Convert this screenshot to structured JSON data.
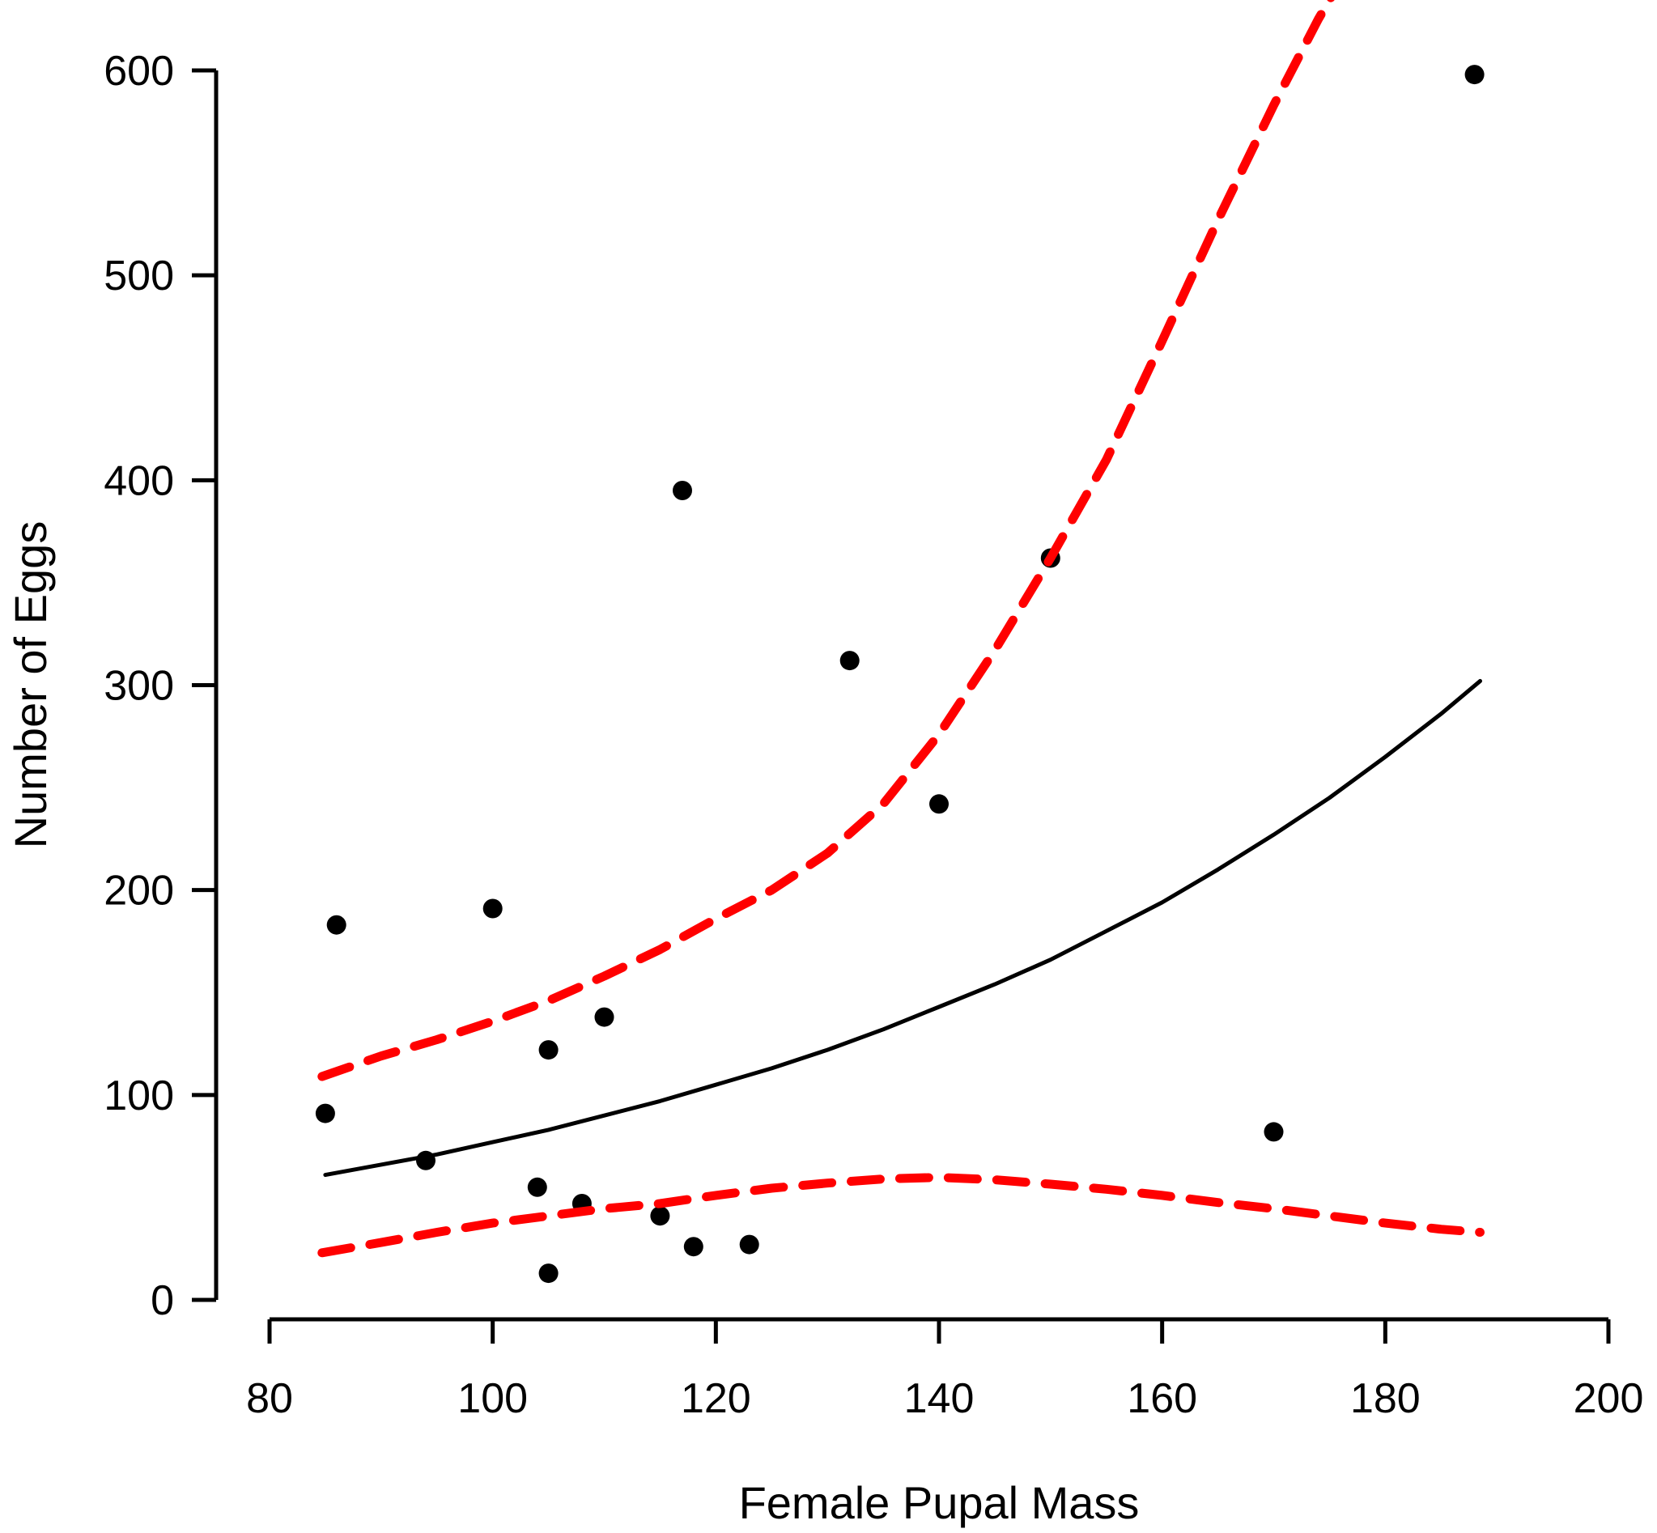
{
  "chart_data": {
    "type": "scatter",
    "title": "",
    "xlabel": "Female Pupal Mass",
    "ylabel": "Number of Eggs",
    "xlim": [
      80,
      200
    ],
    "ylim": [
      0,
      600
    ],
    "xticks": [
      80,
      100,
      120,
      140,
      160,
      180,
      200
    ],
    "yticks": [
      0,
      100,
      200,
      300,
      400,
      500,
      600
    ],
    "grid": false,
    "legend": "none",
    "points": [
      [
        85,
        91
      ],
      [
        86,
        183
      ],
      [
        94,
        68
      ],
      [
        100,
        191
      ],
      [
        104,
        55
      ],
      [
        105,
        13
      ],
      [
        105,
        122
      ],
      [
        108,
        47
      ],
      [
        110,
        138
      ],
      [
        115,
        41
      ],
      [
        117,
        395
      ],
      [
        118,
        26
      ],
      [
        123,
        27
      ],
      [
        132,
        312
      ],
      [
        140,
        242
      ],
      [
        150,
        362
      ],
      [
        170,
        82
      ],
      [
        188,
        598
      ]
    ],
    "series": [
      {
        "name": "fitted-curve",
        "style": "solid",
        "color": "#000000",
        "xy": [
          [
            85,
            61
          ],
          [
            90,
            66
          ],
          [
            95,
            71
          ],
          [
            100,
            77
          ],
          [
            105,
            83
          ],
          [
            110,
            90
          ],
          [
            115,
            97
          ],
          [
            120,
            105
          ],
          [
            125,
            113
          ],
          [
            130,
            122
          ],
          [
            135,
            132
          ],
          [
            140,
            143
          ],
          [
            145,
            154
          ],
          [
            150,
            166
          ],
          [
            155,
            180
          ],
          [
            160,
            194
          ],
          [
            165,
            210
          ],
          [
            170,
            227
          ],
          [
            175,
            245
          ],
          [
            180,
            265
          ],
          [
            185,
            286
          ],
          [
            188.5,
            302
          ]
        ]
      },
      {
        "name": "upper-confidence-band",
        "style": "dashed",
        "color": "#FF0000",
        "xy": [
          [
            84.7,
            109
          ],
          [
            90,
            119
          ],
          [
            95,
            127
          ],
          [
            100,
            136
          ],
          [
            105,
            146
          ],
          [
            110,
            158
          ],
          [
            115,
            171
          ],
          [
            120,
            186
          ],
          [
            125,
            200
          ],
          [
            130,
            218
          ],
          [
            135,
            242
          ],
          [
            140,
            276
          ],
          [
            145,
            317
          ],
          [
            150,
            362
          ],
          [
            155,
            410
          ],
          [
            160,
            468
          ],
          [
            165,
            527
          ],
          [
            170,
            583
          ],
          [
            174,
            625
          ],
          [
            175.6,
            640
          ]
        ]
      },
      {
        "name": "lower-confidence-band",
        "style": "dashed",
        "color": "#FF0000",
        "xy": [
          [
            84.7,
            23
          ],
          [
            90,
            28
          ],
          [
            95,
            33
          ],
          [
            100,
            37.5
          ],
          [
            105,
            41
          ],
          [
            110,
            44.5
          ],
          [
            115,
            47
          ],
          [
            120,
            51
          ],
          [
            125,
            54.5
          ],
          [
            130,
            57
          ],
          [
            135,
            59
          ],
          [
            140,
            59.8
          ],
          [
            145,
            58.6
          ],
          [
            150,
            56.5
          ],
          [
            155,
            54
          ],
          [
            160,
            51
          ],
          [
            165,
            47.5
          ],
          [
            170,
            44.5
          ],
          [
            175,
            41
          ],
          [
            180,
            37.5
          ],
          [
            185,
            34.5
          ],
          [
            188.5,
            33
          ]
        ]
      }
    ],
    "colors": {
      "points": "#000000",
      "fit_line": "#000000",
      "confidence_band": "#FF0000",
      "background": "#FFFFFF"
    }
  }
}
